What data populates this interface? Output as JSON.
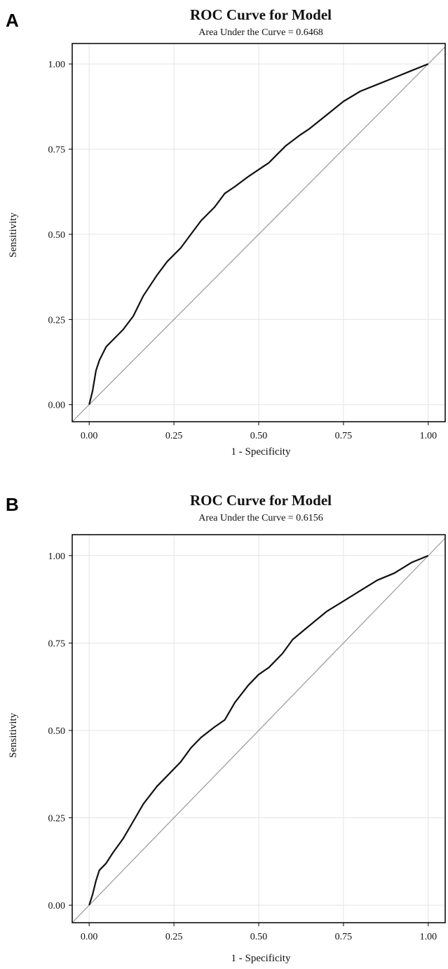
{
  "chart_data": [
    {
      "type": "line",
      "panel_label": "A",
      "title": "ROC Curve for Model",
      "subtitle": "Area Under the Curve = 0.6468",
      "xlabel": "1 - Specificity",
      "ylabel": "Sensitivity",
      "xlim": [
        -0.05,
        1.05
      ],
      "ylim": [
        -0.05,
        1.06
      ],
      "xticks": [
        "0.00",
        "0.25",
        "0.50",
        "0.75",
        "1.00"
      ],
      "yticks": [
        "0.00",
        "0.25",
        "0.50",
        "0.75",
        "1.00"
      ],
      "grid": true,
      "reference_line": "diagonal",
      "series": [
        {
          "x": [
            0.0,
            0.01,
            0.02,
            0.03,
            0.05,
            0.07,
            0.1,
            0.13,
            0.16,
            0.2,
            0.23,
            0.27,
            0.3,
            0.33,
            0.37,
            0.4,
            0.43,
            0.47,
            0.5,
            0.53,
            0.55,
            0.58,
            0.62,
            0.65,
            0.7,
            0.75,
            0.8,
            0.85,
            0.9,
            0.95,
            1.0
          ],
          "y": [
            0.0,
            0.04,
            0.1,
            0.13,
            0.17,
            0.19,
            0.22,
            0.26,
            0.32,
            0.38,
            0.42,
            0.46,
            0.5,
            0.54,
            0.58,
            0.62,
            0.64,
            0.67,
            0.69,
            0.71,
            0.73,
            0.76,
            0.79,
            0.81,
            0.85,
            0.89,
            0.92,
            0.94,
            0.96,
            0.98,
            1.0
          ]
        }
      ]
    },
    {
      "type": "line",
      "panel_label": "B",
      "title": "ROC Curve for Model",
      "subtitle": "Area Under the Curve = 0.6156",
      "xlabel": "1 - Specificity",
      "ylabel": "Sensitivity",
      "xlim": [
        -0.05,
        1.05
      ],
      "ylim": [
        -0.05,
        1.06
      ],
      "xticks": [
        "0.00",
        "0.25",
        "0.50",
        "0.75",
        "1.00"
      ],
      "yticks": [
        "0.00",
        "0.25",
        "0.50",
        "0.75",
        "1.00"
      ],
      "grid": true,
      "reference_line": "diagonal",
      "series": [
        {
          "x": [
            0.0,
            0.01,
            0.02,
            0.03,
            0.05,
            0.07,
            0.1,
            0.13,
            0.16,
            0.2,
            0.23,
            0.27,
            0.3,
            0.33,
            0.37,
            0.4,
            0.43,
            0.47,
            0.5,
            0.53,
            0.57,
            0.6,
            0.65,
            0.7,
            0.75,
            0.8,
            0.85,
            0.9,
            0.95,
            1.0
          ],
          "y": [
            0.0,
            0.03,
            0.07,
            0.1,
            0.12,
            0.15,
            0.19,
            0.24,
            0.29,
            0.34,
            0.37,
            0.41,
            0.45,
            0.48,
            0.51,
            0.53,
            0.58,
            0.63,
            0.66,
            0.68,
            0.72,
            0.76,
            0.8,
            0.84,
            0.87,
            0.9,
            0.93,
            0.95,
            0.98,
            1.0
          ]
        }
      ]
    }
  ]
}
